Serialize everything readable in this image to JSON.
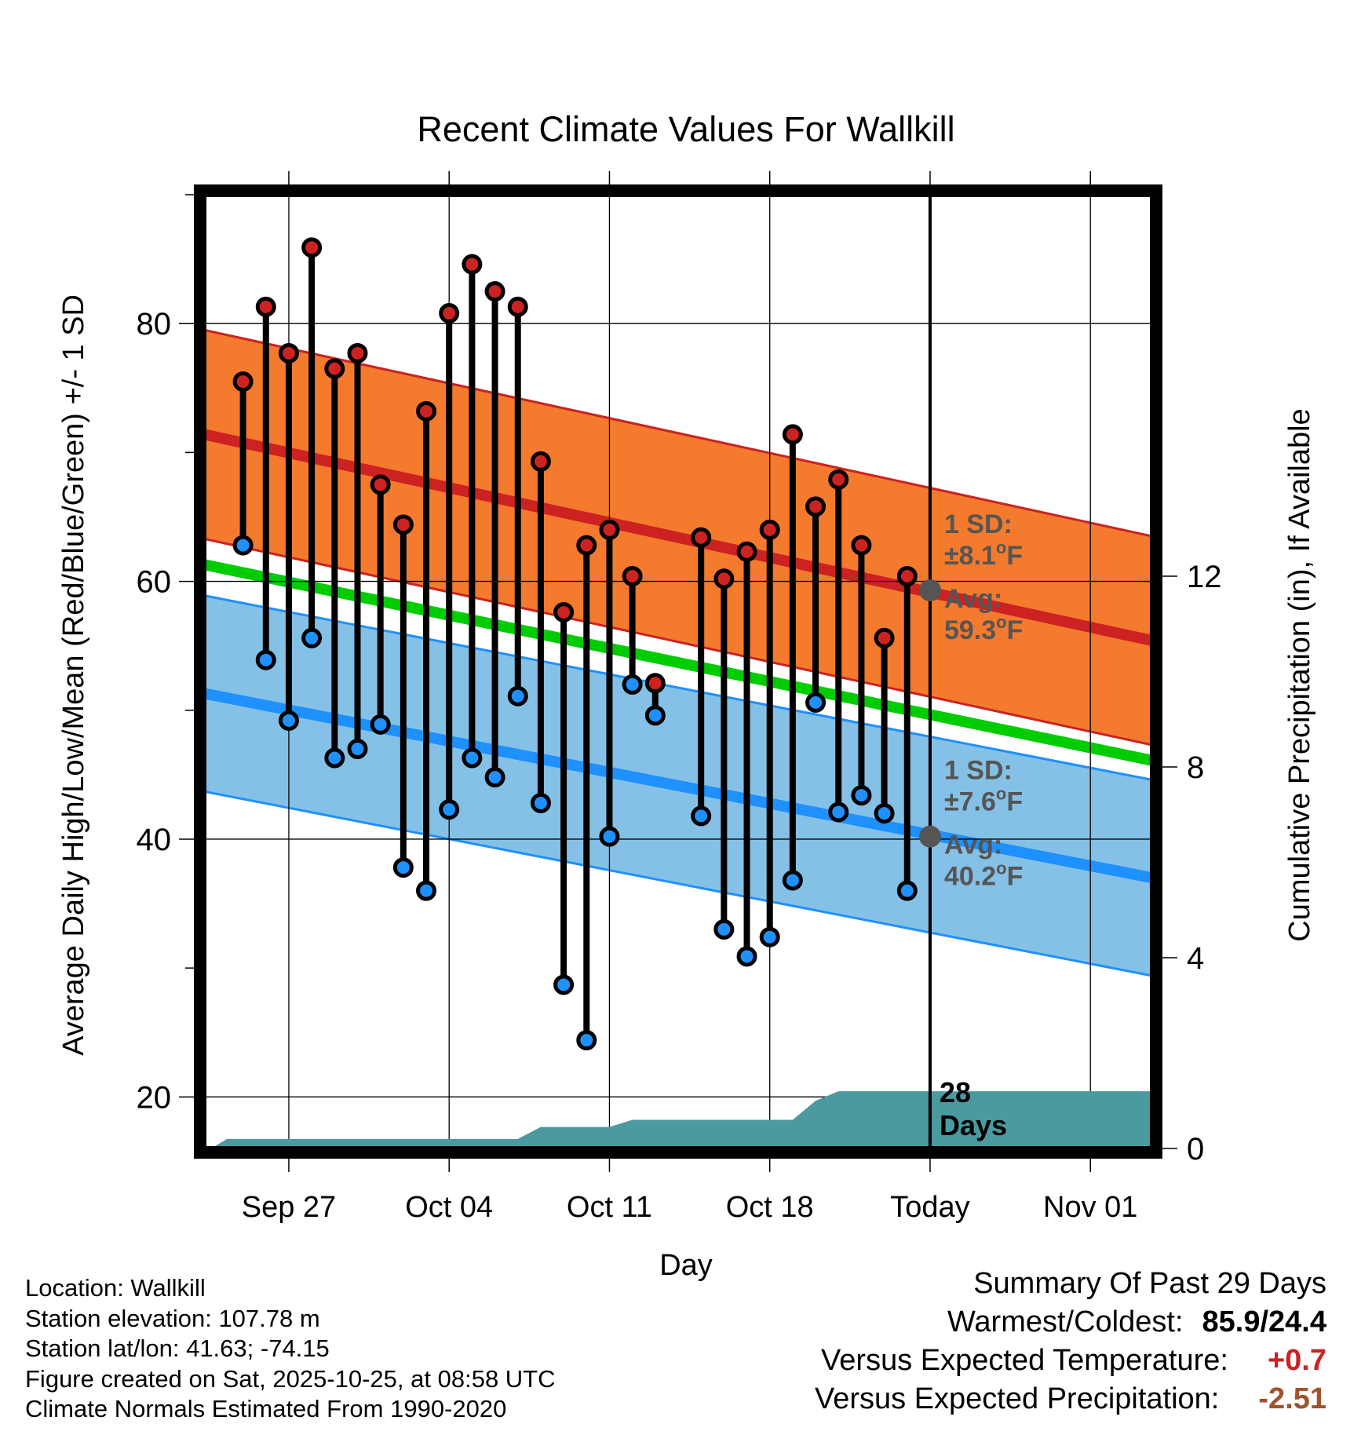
{
  "chart_data": {
    "type": "line",
    "title": "Recent Climate Values For Wallkill",
    "xlabel": "Day",
    "ylabel": "Average Daily High/Low/Mean (Red/Blue/Green) +/- 1 SD",
    "y2label": "Cumulative Precipitation (in), If Available",
    "ylim": [
      16,
      90
    ],
    "y2lim": [
      0,
      20
    ],
    "xlim_day": [
      -0.7,
      40.7
    ],
    "x_ticks": [
      {
        "day": 3,
        "label": "Sep 27"
      },
      {
        "day": 10,
        "label": "Oct 04"
      },
      {
        "day": 17,
        "label": "Oct 11"
      },
      {
        "day": 24,
        "label": "Oct 18"
      },
      {
        "day": 31,
        "label": "Today"
      },
      {
        "day": 38,
        "label": "Nov 01"
      }
    ],
    "y_ticks": [
      20,
      40,
      60,
      80
    ],
    "y_minor_ticks": [
      30,
      50,
      70,
      90
    ],
    "y2_ticks": [
      0,
      4,
      8,
      12
    ],
    "today_day": 31,
    "days": [
      1,
      2,
      3,
      4,
      5,
      6,
      7,
      8,
      9,
      10,
      11,
      12,
      13,
      14,
      15,
      16,
      17,
      18,
      19,
      20,
      21,
      22,
      23,
      24,
      25,
      26,
      27,
      28,
      29,
      30
    ],
    "highs": [
      75.5,
      81.3,
      77.7,
      85.9,
      76.5,
      77.7,
      67.5,
      64.4,
      73.2,
      80.8,
      84.6,
      82.5,
      81.3,
      69.3,
      57.6,
      62.8,
      64.0,
      60.4,
      52.1,
      null,
      63.4,
      60.2,
      62.3,
      64.0,
      71.4,
      65.8,
      67.9,
      62.8,
      55.6,
      60.4
    ],
    "lows": [
      62.8,
      53.9,
      49.2,
      55.6,
      46.3,
      47.0,
      48.9,
      37.8,
      36.0,
      42.3,
      46.3,
      44.8,
      51.1,
      42.8,
      28.7,
      24.4,
      40.2,
      52.0,
      49.6,
      null,
      41.8,
      33.0,
      30.9,
      32.4,
      36.8,
      50.6,
      42.1,
      43.4,
      42.0,
      36.0
    ],
    "series": [
      {
        "name": "Normal High",
        "color": "#cc2222",
        "x_start": -0.7,
        "y_start": 71.4,
        "x_end": 40.7,
        "y_end": 55.4,
        "sd": 8.1
      },
      {
        "name": "Normal Mean",
        "color": "#00cc00",
        "x_start": -0.7,
        "y_start": 61.3,
        "x_end": 40.7,
        "y_end": 46.1
      },
      {
        "name": "Normal Low",
        "color": "#1e90ff",
        "x_start": -0.7,
        "y_start": 51.3,
        "x_end": 40.7,
        "y_end": 37.0,
        "sd": 7.6
      }
    ],
    "precip_cumulative": [
      {
        "day": -0.7,
        "value": 0
      },
      {
        "day": -0.4,
        "value": 0
      },
      {
        "day": 0.3,
        "value": 0.2
      },
      {
        "day": 13.0,
        "value": 0.2
      },
      {
        "day": 14.0,
        "value": 0.45
      },
      {
        "day": 17.0,
        "value": 0.45
      },
      {
        "day": 18.0,
        "value": 0.6
      },
      {
        "day": 25.0,
        "value": 0.6
      },
      {
        "day": 26.0,
        "value": 1.0
      },
      {
        "day": 27.0,
        "value": 1.2
      },
      {
        "day": 40.7,
        "value": 1.2
      }
    ],
    "precip_color": "#4a9aa0",
    "annotations": {
      "high_sd_line1": "1 SD:",
      "high_sd_line2": "±8.1",
      "high_avg_line1": "Avg:",
      "high_avg_line2": "59.3",
      "low_sd_line1": "1 SD:",
      "low_sd_line2": "±7.6",
      "low_avg_line1": "Avg:",
      "low_avg_line2": "40.2",
      "degree_symbol": "o",
      "unit": "F",
      "days_line1": "28",
      "days_line2": "Days"
    },
    "today_high_avg": 59.3,
    "today_low_avg": 40.2
  },
  "info": {
    "location": "Location: Wallkill",
    "elevation": "Station elevation: 107.78 m",
    "latlon": "Station lat/lon: 41.63; -74.15",
    "created": "Figure created on Sat, 2025-10-25, at 08:58 UTC",
    "normals": "Climate Normals Estimated From 1990-2020"
  },
  "summary": {
    "title": "Summary Of Past 29 Days",
    "warm_cold_label": "Warmest/Coldest:",
    "warm_cold_value": "85.9/24.4",
    "temp_label": "Versus Expected Temperature:",
    "temp_value": "+0.7",
    "temp_color": "#cc2222",
    "precip_label": "Versus Expected Precipitation:",
    "precip_value": "-2.51",
    "precip_color": "#a0522d"
  }
}
